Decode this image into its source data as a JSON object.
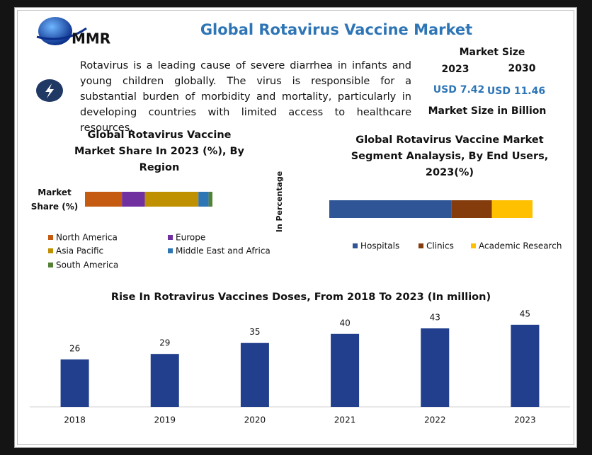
{
  "header": {
    "logo_text": "MMR",
    "title": "Global Rotavirus Vaccine Market",
    "description": "Rotavirus is a leading cause of severe diarrhea in infants and young children globally. The virus is responsible for a substantial burden of morbidity and mortality, particularly in developing countries with limited access to healthcare resources.",
    "market_size": {
      "label": "Market Size",
      "years": [
        "2023",
        "2030"
      ],
      "values": [
        "USD 7.42",
        "USD 11.46"
      ],
      "unit_note": "Market Size in Billion"
    }
  },
  "chart_data": [
    {
      "type": "stacked_hbar",
      "title": "Global Rotavirus Vaccine Market Share In 2023 (%), By Region",
      "categories": [
        "Market Share (%)"
      ],
      "xlim": [
        0,
        100
      ],
      "series": [
        {
          "name": "North America",
          "color": "#c55a11",
          "values": [
            29
          ]
        },
        {
          "name": "Europe",
          "color": "#7030a0",
          "values": [
            18
          ]
        },
        {
          "name": "Asia Pacific",
          "color": "#bf9000",
          "values": [
            42
          ]
        },
        {
          "name": "Middle East and Africa",
          "color": "#2e75b6",
          "values": [
            8
          ]
        },
        {
          "name": "South America",
          "color": "#548235",
          "values": [
            3
          ]
        }
      ]
    },
    {
      "type": "stacked_hbar",
      "title": "Global Rotavirus Vaccine Market Segment Analaysis, By End Users, 2023(%)",
      "y_label": "In Percentage",
      "categories": [
        null
      ],
      "xlim": [
        0,
        100
      ],
      "series": [
        {
          "name": "Hospitals",
          "color": "#2f5597",
          "values": [
            60
          ]
        },
        {
          "name": "Clinics",
          "color": "#843c0c",
          "values": [
            20
          ]
        },
        {
          "name": "Academic Research",
          "color": "#ffc000",
          "values": [
            20
          ]
        }
      ]
    },
    {
      "type": "bar",
      "title": "Rise In Rotravirus Vaccines Doses, From 2018 To 2023 (In million)",
      "categories": [
        "2018",
        "2019",
        "2020",
        "2021",
        "2022",
        "2023"
      ],
      "values": [
        26,
        29,
        35,
        40,
        43,
        45
      ],
      "color": "#213f8c",
      "ylim": [
        0,
        50
      ]
    }
  ]
}
